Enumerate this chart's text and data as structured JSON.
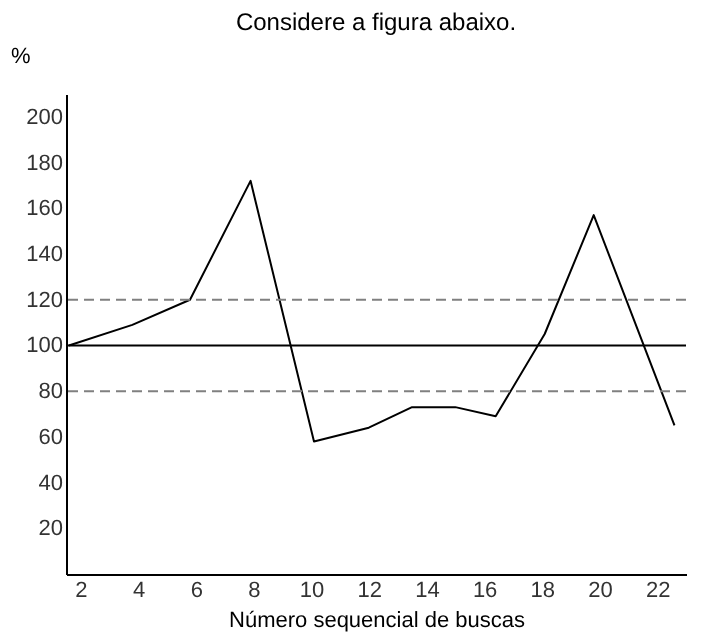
{
  "chart_data": {
    "type": "line",
    "title": "Considere a figura abaixo.",
    "xlabel": "Número sequencial de buscas",
    "ylabel": "%",
    "x": [
      1.6,
      3.8,
      5.8,
      7.9,
      10.1,
      12,
      13.5,
      15,
      16.4,
      18.1,
      19.8,
      22.6
    ],
    "series": [
      {
        "color": "#000000",
        "values": [
          100,
          109,
          120,
          172,
          58,
          64,
          73,
          73,
          69,
          105,
          157,
          65
        ]
      }
    ],
    "xlim": [
      1.5,
      23
    ],
    "xticks": [
      2,
      4,
      6,
      8,
      10,
      12,
      14,
      16,
      18,
      20,
      22
    ],
    "ylim": [
      0,
      210
    ],
    "yticks": [
      20,
      40,
      60,
      80,
      100,
      120,
      140,
      160,
      180,
      200
    ],
    "ref_lines": [
      {
        "axis": "y",
        "value": 120,
        "line_style": "dashed",
        "color": "#808080"
      },
      {
        "axis": "y",
        "value": 100,
        "line_style": "solid",
        "color": "#000000"
      },
      {
        "axis": "y",
        "value": 80,
        "line_style": "dashed",
        "color": "#808080"
      }
    ],
    "grid": false,
    "marker": "none",
    "line_style": "solid"
  }
}
